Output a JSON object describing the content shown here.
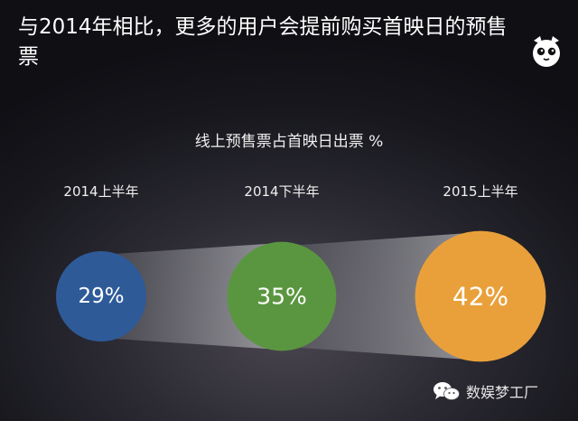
{
  "headline": "与2014年相比，更多的用户会提前购买首映日的预售票",
  "logo_icon": "cat-face-icon",
  "watermark": {
    "icon": "wechat-icon",
    "text": "数娱梦工厂"
  },
  "colors": {
    "background": "#1a1a20",
    "funnel": "#8a8a8e",
    "text": "#ffffff"
  },
  "chart_data": {
    "type": "bubble",
    "title": "线上预售票占首映日出票 %",
    "unit": "%",
    "categories": [
      "2014上半年",
      "2014下半年",
      "2015上半年"
    ],
    "values": [
      29,
      35,
      42
    ],
    "value_labels": [
      "29%",
      "35%",
      "42%"
    ],
    "colors": [
      "#2e5a98",
      "#5a9640",
      "#e9a03a"
    ]
  }
}
